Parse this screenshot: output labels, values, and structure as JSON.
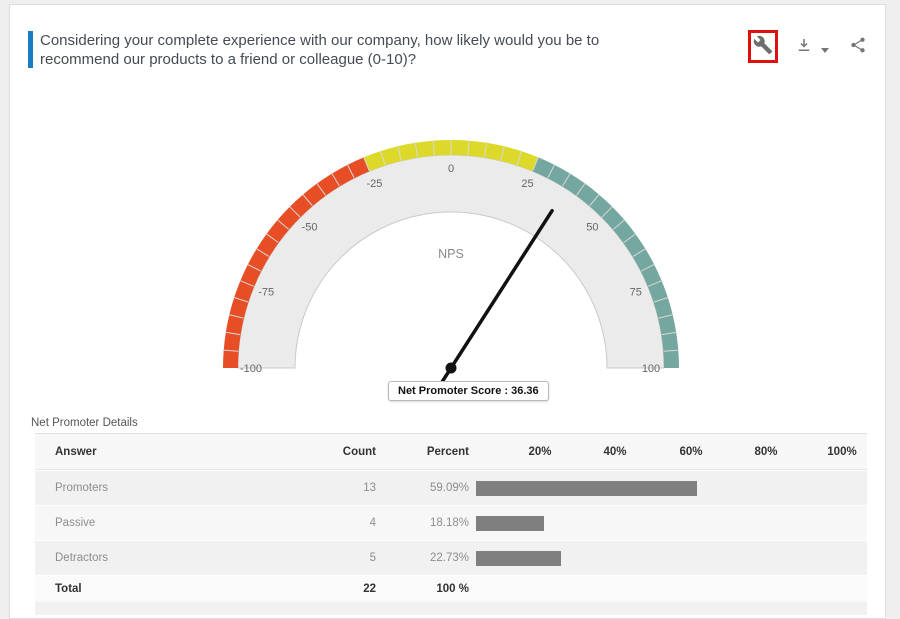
{
  "header": {
    "question": "Considering your complete experience with our company, how likely would you be to recommend our products to a friend or colleague (0-10)?",
    "accent_color": "#1a7dc4"
  },
  "toolbar": {
    "wrench_icon": "wrench-icon",
    "download_icon": "download-icon",
    "share_icon": "share-icon",
    "icon_color": "#757575",
    "highlight_box_color": "#dd0f0f"
  },
  "chart_data": {
    "type": "gauge",
    "title": "NPS",
    "min": -100,
    "max": 100,
    "value": 36.36,
    "tick_interval": 5,
    "label_interval": 25,
    "axis_labels": [
      "-100",
      "-75",
      "-50",
      "-25",
      "0",
      "25",
      "50",
      "75",
      "100"
    ],
    "bands": [
      {
        "from": -100,
        "to": -25,
        "color": "#e84e25"
      },
      {
        "from": -25,
        "to": 25,
        "color": "#ddd92a"
      },
      {
        "from": 25,
        "to": 100,
        "color": "#74a79f"
      }
    ],
    "face_color": "#ebebeb",
    "needle_color": "#111111",
    "tooltip": "Net Promoter Score : 36.36"
  },
  "table": {
    "title": "Net Promoter Details",
    "columns": [
      "Answer",
      "Count",
      "Percent",
      "20%",
      "40%",
      "60%",
      "80%",
      "100%"
    ],
    "rows": [
      {
        "answer": "Promoters",
        "count": "13",
        "percent": "59.09%",
        "percent_value": 59.09
      },
      {
        "answer": "Passive",
        "count": "4",
        "percent": "18.18%",
        "percent_value": 18.18
      },
      {
        "answer": "Detractors",
        "count": "5",
        "percent": "22.73%",
        "percent_value": 22.73
      }
    ],
    "total": {
      "answer": "Total",
      "count": "22",
      "percent": "100 %"
    },
    "bar_color": "#7f7f7f"
  }
}
